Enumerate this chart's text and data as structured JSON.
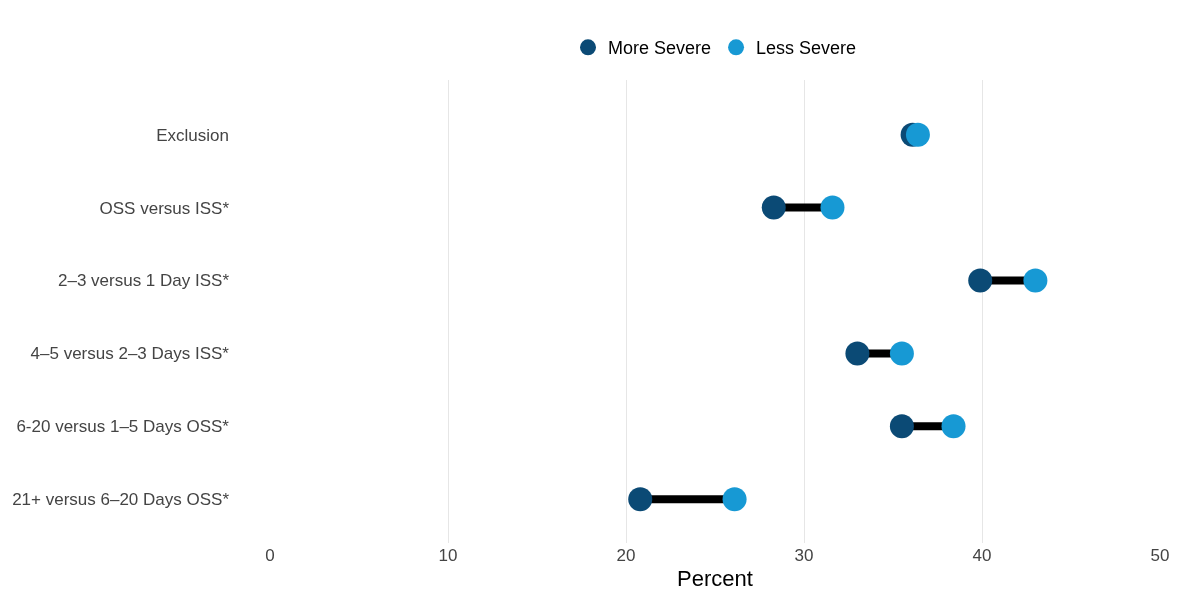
{
  "chart_data": {
    "type": "scatter",
    "orientation": "horizontal",
    "xlabel": "Percent",
    "categories": [
      "Exclusion",
      "OSS versus ISS*",
      "2–3 versus 1 Day ISS*",
      "4–5 versus 2–3 Days ISS*",
      "6-20 versus 1–5 Days OSS*",
      "21+ versus 6–20 Days OSS*"
    ],
    "series": [
      {
        "name": "More Severe",
        "color": "#0b4a75",
        "values": [
          36.1,
          28.3,
          39.9,
          33.0,
          35.5,
          20.8
        ]
      },
      {
        "name": "Less Severe",
        "color": "#1799d4",
        "values": [
          36.4,
          31.6,
          43.0,
          35.5,
          38.4,
          26.1
        ]
      }
    ],
    "xlim": [
      0,
      50
    ],
    "xticks": [
      0,
      10,
      20,
      30,
      40,
      50
    ],
    "grid": "x",
    "legend": "top",
    "marker": "circle"
  }
}
